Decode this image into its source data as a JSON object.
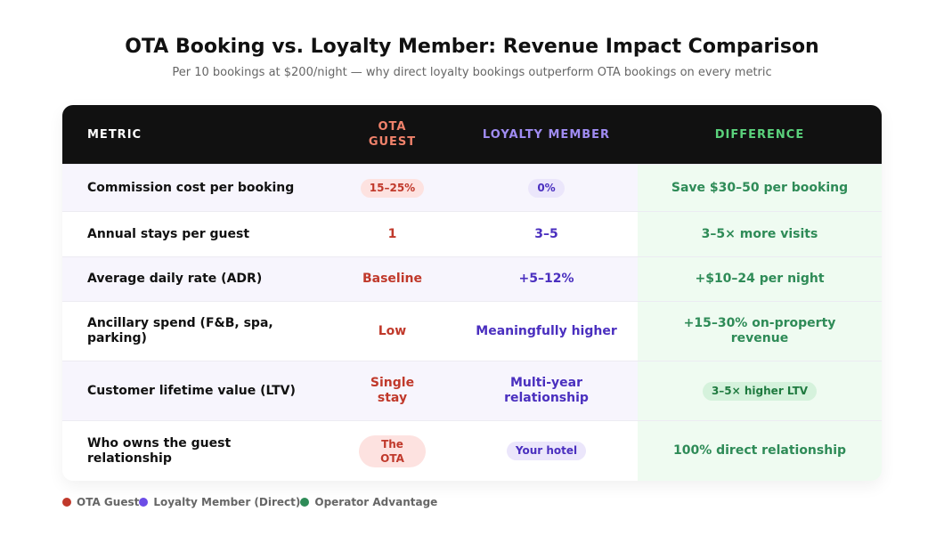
{
  "header": {
    "title": "OTA Booking vs. Loyalty Member: Revenue Impact Comparison",
    "subtitle": "Per 10 bookings at $200/night — why direct loyalty bookings outperform OTA bookings on every metric"
  },
  "table": {
    "columns": {
      "metric": "METRIC",
      "ota_line1": "OTA",
      "ota_line2": "GUEST",
      "loyalty": "LOYALTY MEMBER",
      "difference": "DIFFERENCE"
    },
    "rows": [
      {
        "metric": "Commission cost per booking",
        "ota": "15–25%",
        "loyalty": "0%",
        "difference": "Save $30–50 per booking"
      },
      {
        "metric": "Annual stays per guest",
        "ota": "1",
        "loyalty": "3–5",
        "difference": "3–5× more visits"
      },
      {
        "metric": "Average daily rate (ADR)",
        "ota": "Baseline",
        "loyalty": "+5–12%",
        "difference": "+$10–24 per night"
      },
      {
        "metric": "Ancillary spend (F&B, spa, parking)",
        "ota": "Low",
        "loyalty": "Meaningfully higher",
        "difference": "+15–30% on-property revenue"
      },
      {
        "metric": "Customer lifetime value (LTV)",
        "ota": "Single stay",
        "loyalty": "Multi-year relationship",
        "difference": "3–5× higher LTV"
      },
      {
        "metric": "Who owns the guest relationship",
        "ota": "The OTA",
        "loyalty": "Your hotel",
        "difference": "100% direct relationship"
      }
    ]
  },
  "legend": {
    "items": [
      {
        "label": "OTA Guest",
        "color": "#c0392b"
      },
      {
        "label": "Loyalty Member (Direct)",
        "color": "#6b4ce6"
      },
      {
        "label": "Operator Advantage",
        "color": "#2e8b57"
      }
    ]
  }
}
